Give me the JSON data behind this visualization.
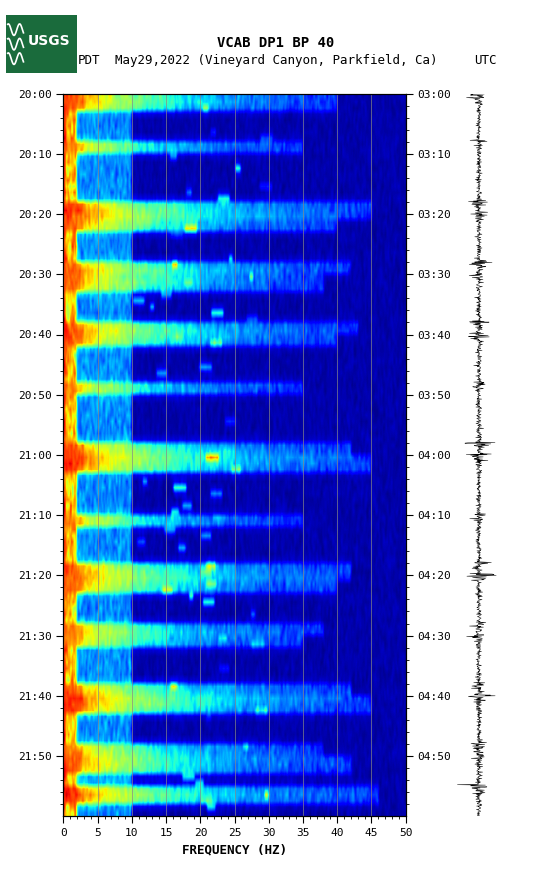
{
  "title_line1": "VCAB DP1 BP 40",
  "title_line2_left": "PDT",
  "title_line2_center": "May29,2022 (Vineyard Canyon, Parkfield, Ca)",
  "title_line2_right": "UTC",
  "xlabel": "FREQUENCY (HZ)",
  "yticks_left": [
    "20:00",
    "20:10",
    "20:20",
    "20:30",
    "20:40",
    "20:50",
    "21:00",
    "21:10",
    "21:20",
    "21:30",
    "21:40",
    "21:50"
  ],
  "yticks_right": [
    "03:00",
    "03:10",
    "03:20",
    "03:30",
    "03:40",
    "03:50",
    "04:00",
    "04:10",
    "04:20",
    "04:30",
    "04:40",
    "04:50"
  ],
  "xticks": [
    0,
    5,
    10,
    15,
    20,
    25,
    30,
    35,
    40,
    45,
    50
  ],
  "freq_min": 0,
  "freq_max": 50,
  "n_time": 120,
  "n_freq": 500,
  "background_color": "#ffffff",
  "vertical_lines_freq": [
    5,
    10,
    15,
    20,
    25,
    30,
    35,
    40,
    45
  ],
  "vertical_line_color": "#888888",
  "fig_width": 5.52,
  "fig_height": 8.92
}
